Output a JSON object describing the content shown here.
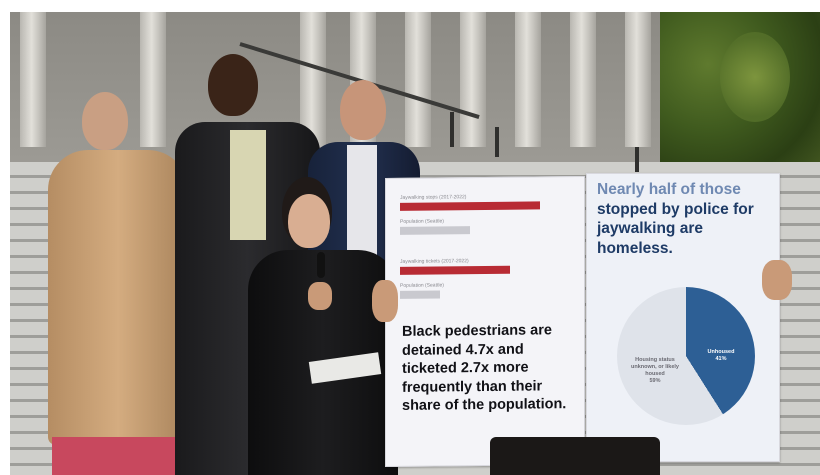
{
  "scene": {
    "sky_color": "#9c9a94",
    "steps_color": "#cfcfcb"
  },
  "left_sign": {
    "chart_rows": [
      {
        "label": "Jaywalking stops (2017-2022)",
        "value": ""
      },
      {
        "label": "Population (Seattle)",
        "value": ""
      },
      {
        "label": "Jaywalking tickets (2017-2022)",
        "value": ""
      },
      {
        "label": "Population (Seattle)",
        "value": ""
      }
    ],
    "headline": "Black pedestrians are detained 4.7x and ticketed 2.7x more frequently than their share of the population.",
    "bar_color": "#b82b34"
  },
  "right_sign": {
    "headline_first": "Nearly half of those",
    "headline_rest": "stopped by police for jaywalking are homeless.",
    "pie": {
      "slices": [
        {
          "label": "Unhoused",
          "value": 41,
          "value_label": "41%",
          "color": "#2d5f95"
        },
        {
          "label": "Housing status unknown, or likely housed",
          "value": 59,
          "value_label": "59%",
          "color": "#dfe3ea"
        }
      ]
    }
  }
}
